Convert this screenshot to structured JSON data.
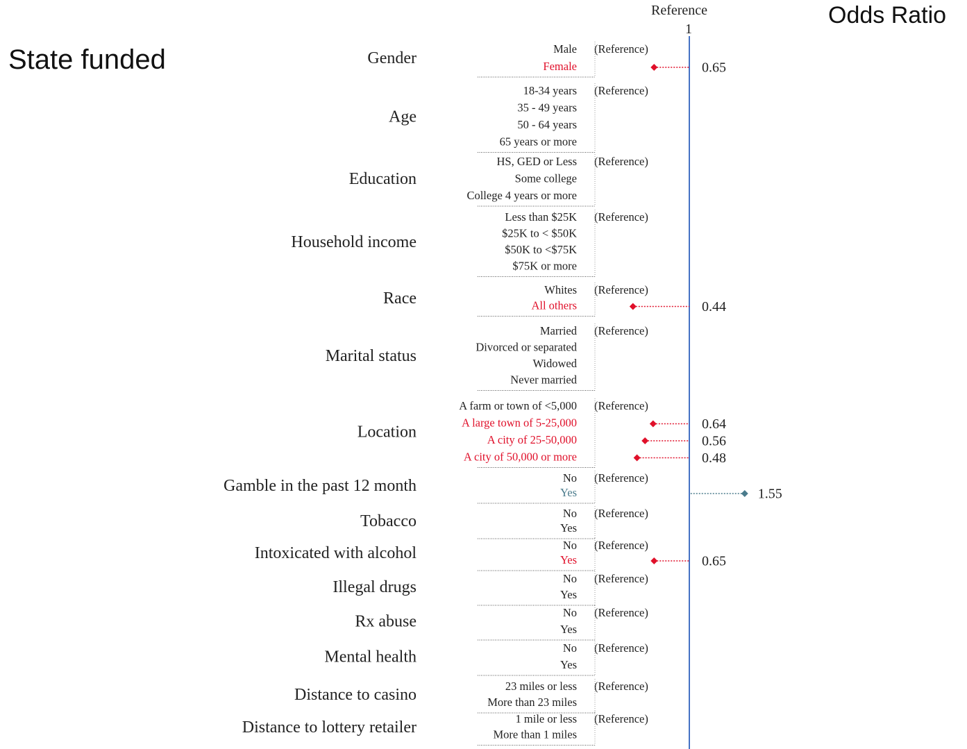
{
  "title": "State funded",
  "header": {
    "reference_label": "Reference",
    "reference_value": "1",
    "axis_title": "Odds Ratio"
  },
  "colors": {
    "significant_lower": "#e0102a",
    "significant_higher": "#4a7b8c",
    "reference_line": "#4472c4",
    "text": "#222222"
  },
  "chart_data": {
    "type": "forest",
    "reference": 1,
    "reference_note": "(Reference)",
    "groups": [
      {
        "name": "Gender",
        "levels": [
          {
            "label": "Male",
            "reference": true
          },
          {
            "label": "Female",
            "or": 0.65,
            "or_label": "0.65"
          }
        ]
      },
      {
        "name": "Age",
        "levels": [
          {
            "label": "18-34 years",
            "reference": true
          },
          {
            "label": "35 - 49 years"
          },
          {
            "label": "50 - 64 years"
          },
          {
            "label": "65 years or more"
          }
        ]
      },
      {
        "name": "Education",
        "levels": [
          {
            "label": "HS, GED or Less",
            "reference": true
          },
          {
            "label": "Some college"
          },
          {
            "label": "College 4 years or more"
          }
        ]
      },
      {
        "name": "Household income",
        "levels": [
          {
            "label": "Less than $25K",
            "reference": true
          },
          {
            "label": "$25K to < $50K"
          },
          {
            "label": "$50K to <$75K"
          },
          {
            "label": "$75K or more"
          }
        ]
      },
      {
        "name": "Race",
        "levels": [
          {
            "label": "Whites",
            "reference": true
          },
          {
            "label": "All others",
            "or": 0.44,
            "or_label": "0.44"
          }
        ]
      },
      {
        "name": "Marital status",
        "levels": [
          {
            "label": "Married",
            "reference": true
          },
          {
            "label": "Divorced or separated"
          },
          {
            "label": "Widowed"
          },
          {
            "label": "Never married"
          }
        ]
      },
      {
        "name": "Location",
        "levels": [
          {
            "label": "A farm or town of <5,000",
            "reference": true
          },
          {
            "label": "A large town of 5-25,000",
            "or": 0.64,
            "or_label": "0.64"
          },
          {
            "label": "A city of 25-50,000",
            "or": 0.56,
            "or_label": "0.56"
          },
          {
            "label": "A city of 50,000 or more",
            "or": 0.48,
            "or_label": "0.48"
          }
        ]
      },
      {
        "name": "Gamble in the past 12 month",
        "levels": [
          {
            "label": "No",
            "reference": true
          },
          {
            "label": "Yes",
            "or": 1.55,
            "or_label": "1.55"
          }
        ]
      },
      {
        "name": "Tobacco",
        "levels": [
          {
            "label": "No",
            "reference": true
          },
          {
            "label": "Yes"
          }
        ]
      },
      {
        "name": "Intoxicated with alcohol",
        "levels": [
          {
            "label": "No",
            "reference": true
          },
          {
            "label": "Yes",
            "or": 0.65,
            "or_label": "0.65"
          }
        ]
      },
      {
        "name": "Illegal drugs",
        "levels": [
          {
            "label": "No",
            "reference": true
          },
          {
            "label": "Yes"
          }
        ]
      },
      {
        "name": "Rx abuse",
        "levels": [
          {
            "label": "No",
            "reference": true
          },
          {
            "label": "Yes"
          }
        ]
      },
      {
        "name": "Mental health",
        "levels": [
          {
            "label": "No",
            "reference": true
          },
          {
            "label": "Yes"
          }
        ]
      },
      {
        "name": "Distance to casino",
        "levels": [
          {
            "label": "23 miles or less",
            "reference": true
          },
          {
            "label": "More than 23 miles"
          }
        ]
      },
      {
        "name": "Distance to lottery retailer",
        "levels": [
          {
            "label": "1 mile or less",
            "reference": true
          },
          {
            "label": "More than 1 miles"
          }
        ]
      }
    ]
  }
}
